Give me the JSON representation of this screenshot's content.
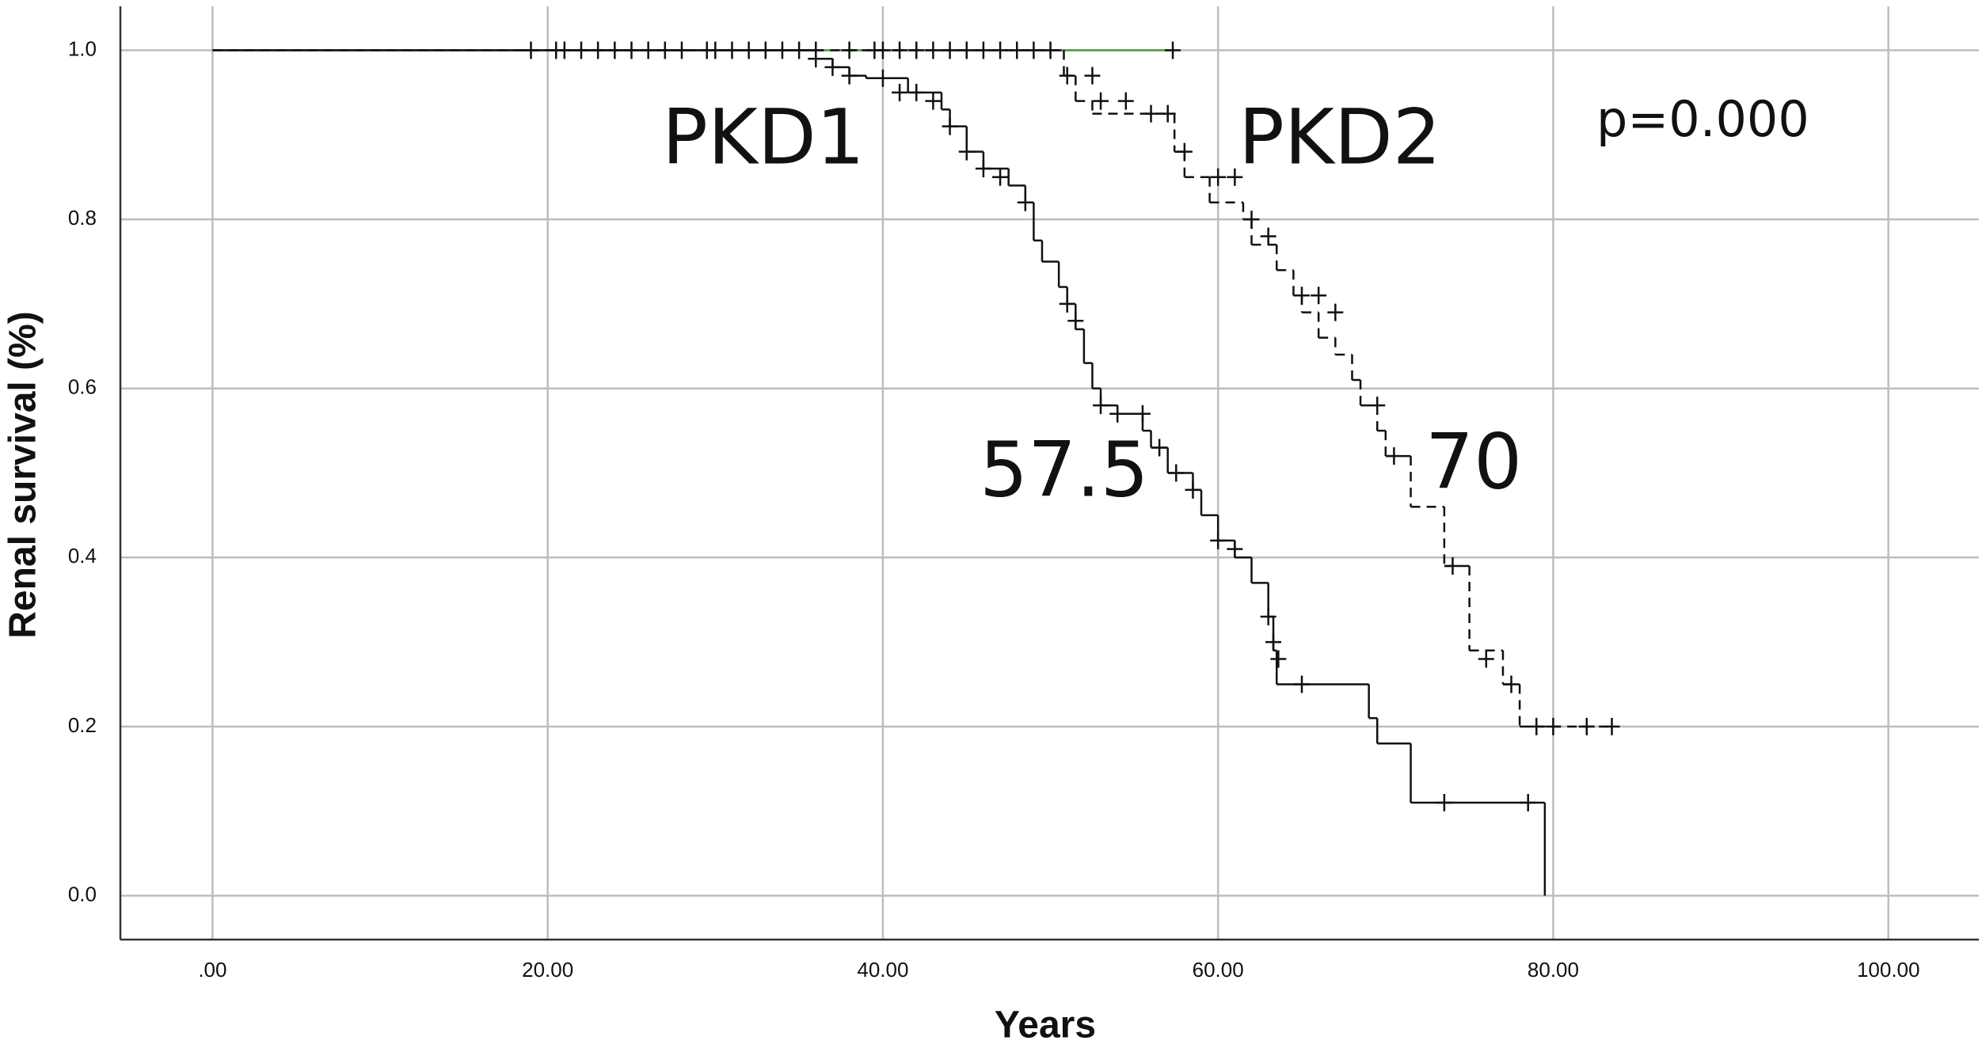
{
  "chart_data": {
    "type": "step",
    "xlabel": "Years",
    "ylabel": "Renal survival (%)",
    "xlim": [
      -5.5,
      105.4
    ],
    "ylim": [
      -0.052,
      1.052
    ],
    "xticks": [
      {
        "value": 0,
        "label": ".00"
      },
      {
        "value": 20,
        "label": "20.00"
      },
      {
        "value": 40,
        "label": "40.00"
      },
      {
        "value": 60,
        "label": "60.00"
      },
      {
        "value": 80,
        "label": "80.00"
      },
      {
        "value": 100,
        "label": "100.00"
      }
    ],
    "yticks": [
      {
        "value": 0,
        "label": "0.0"
      },
      0.2,
      0.4,
      0.6,
      0.8,
      {
        "value": 1,
        "label": "1.0"
      }
    ],
    "grid": true,
    "annotations": [
      "PKD1",
      "PKD2",
      "p=0.000",
      "57.5",
      "70"
    ],
    "series": [
      {
        "color": "#4a9a3a",
        "dash": false,
        "x": [
          0,
          57.3
        ],
        "values": [
          1,
          1
        ],
        "censor_x": [
          19,
          20.5,
          21,
          22,
          23,
          24,
          25,
          26,
          27,
          28,
          29.5,
          30,
          31,
          32,
          33,
          34,
          35,
          36,
          38,
          39.5,
          40,
          41,
          42,
          43,
          44,
          45,
          46,
          47,
          48,
          49,
          50,
          57.3
        ],
        "censor_values": [
          1,
          1,
          1,
          1,
          1,
          1,
          1,
          1,
          1,
          1,
          1,
          1,
          1,
          1,
          1,
          1,
          1,
          1,
          1,
          1,
          1,
          1,
          1,
          1,
          1,
          1,
          1,
          1,
          1,
          1,
          1,
          1
        ]
      },
      {
        "color": "#111111",
        "dash": false,
        "x": [
          0,
          36,
          37,
          38,
          39,
          41.5,
          43.5,
          44,
          45,
          46,
          47.5,
          48.5,
          49,
          49.5,
          50.5,
          51,
          51.5,
          52,
          52.5,
          53,
          54,
          55.5,
          56,
          57,
          58.5,
          59,
          60,
          61,
          62,
          63,
          63.3,
          63.5,
          69,
          69.5,
          71.5,
          79.5
        ],
        "values": [
          1,
          0.99,
          0.98,
          0.97,
          0.967,
          0.95,
          0.93,
          0.91,
          0.88,
          0.86,
          0.84,
          0.82,
          0.775,
          0.75,
          0.72,
          0.7,
          0.67,
          0.63,
          0.6,
          0.58,
          0.57,
          0.55,
          0.53,
          0.5,
          0.48,
          0.45,
          0.42,
          0.4,
          0.37,
          0.33,
          0.29,
          0.25,
          0.21,
          0.18,
          0.11,
          0
        ],
        "censor_x": [
          36,
          37,
          38,
          40,
          41,
          42,
          43,
          44,
          45,
          46,
          47,
          48.5,
          51,
          51.5,
          53,
          54,
          55.5,
          56.5,
          57.5,
          58.5,
          60,
          61,
          63,
          63.3,
          63.6,
          65,
          73.5,
          78.5
        ],
        "censor_values": [
          0.99,
          0.98,
          0.97,
          0.967,
          0.95,
          0.95,
          0.94,
          0.91,
          0.88,
          0.86,
          0.85,
          0.82,
          0.7,
          0.68,
          0.58,
          0.57,
          0.57,
          0.53,
          0.5,
          0.48,
          0.42,
          0.41,
          0.33,
          0.3,
          0.28,
          0.25,
          0.11,
          0.11
        ]
      },
      {
        "color": "#111111",
        "dash": true,
        "x": [
          0,
          50.8,
          51.5,
          52.5,
          57.4,
          58,
          59.5,
          61.5,
          62,
          63.5,
          64.5,
          65,
          66,
          67,
          68,
          68.5,
          69.5,
          70,
          71.5,
          73.5,
          75,
          77,
          78,
          83.5
        ],
        "values": [
          1,
          0.97,
          0.94,
          0.925,
          0.88,
          0.85,
          0.82,
          0.8,
          0.77,
          0.74,
          0.71,
          0.69,
          0.66,
          0.64,
          0.61,
          0.58,
          0.55,
          0.52,
          0.46,
          0.39,
          0.29,
          0.25,
          0.2,
          0.2
        ],
        "censor_x": [
          51,
          52.5,
          53,
          54.5,
          56,
          57,
          58,
          60,
          61,
          62,
          63,
          65,
          66,
          67,
          69.5,
          70.5,
          74,
          76,
          77.5,
          79,
          80,
          82,
          83.5
        ],
        "censor_values": [
          0.97,
          0.97,
          0.94,
          0.94,
          0.925,
          0.925,
          0.88,
          0.85,
          0.85,
          0.8,
          0.78,
          0.71,
          0.71,
          0.69,
          0.58,
          0.52,
          0.39,
          0.28,
          0.25,
          0.2,
          0.2,
          0.2,
          0.2
        ]
      }
    ]
  }
}
